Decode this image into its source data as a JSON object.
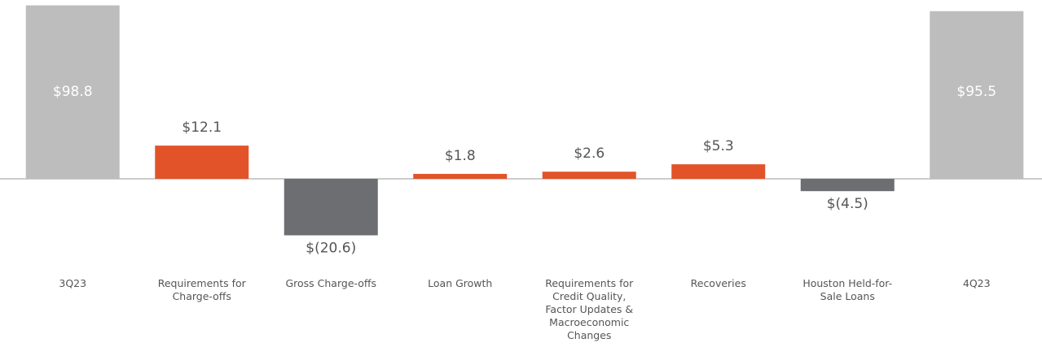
{
  "chart_data": {
    "type": "bar",
    "categories": [
      "3Q23",
      "Requirements for Charge-offs",
      "Gross Charge-offs",
      "Loan Growth",
      "Requirements for Credit Quality, Factor Updates & Macroeconomic Changes",
      "Recoveries",
      "Houston Held-for-Sale Loans",
      "4Q23"
    ],
    "series": [
      {
        "color": "#bdbdbd",
        "values": [
          98.8,
          null,
          null,
          null,
          null,
          null,
          null,
          95.5
        ],
        "value_labels": [
          "$98.8",
          null,
          null,
          null,
          null,
          null,
          null,
          "$95.5"
        ]
      },
      {
        "color": "#e2532a",
        "negative_color": "#6d6e71",
        "axis": "y2",
        "values": [
          null,
          12.1,
          -20.6,
          1.8,
          2.6,
          5.3,
          -4.5,
          null
        ],
        "value_labels": [
          null,
          "$12.1",
          "$(20.6)",
          "$1.8",
          "$2.6",
          "$5.3",
          "$(4.5)",
          null
        ]
      }
    ],
    "ylim": [
      0,
      100
    ],
    "y2lim": [
      0,
      64
    ]
  }
}
